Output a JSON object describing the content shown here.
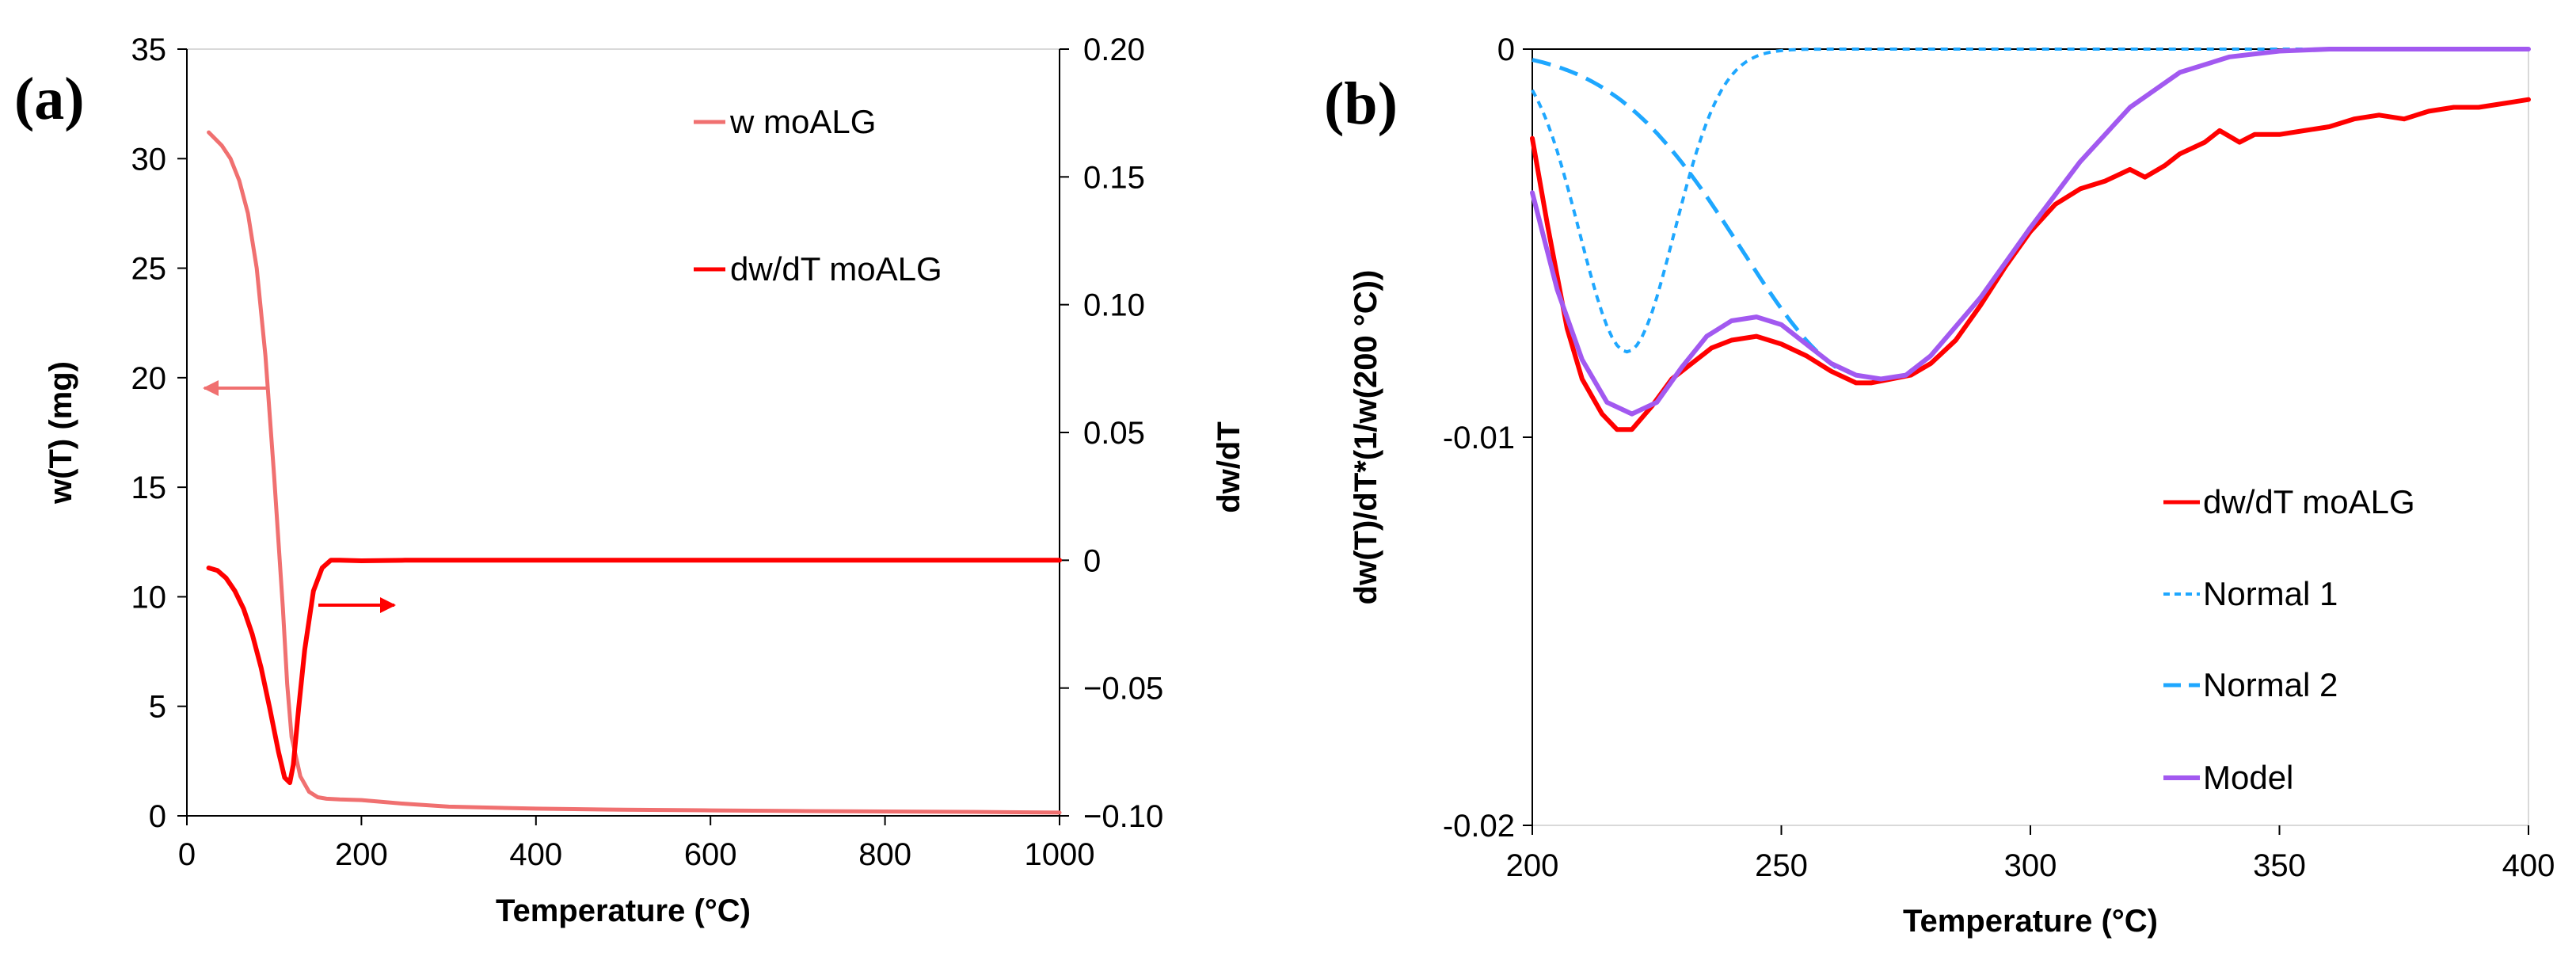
{
  "chart_data": [
    {
      "type": "line",
      "panel_label": "(a)",
      "xlabel": "Temperature (°C)",
      "ylabel": "w(T) (mg)",
      "y2label": "dw/dT",
      "xlim": [
        0,
        1000
      ],
      "ylim": [
        0,
        35
      ],
      "y2lim": [
        -0.1,
        0.2
      ],
      "x_ticks": [
        "0",
        "200",
        "400",
        "600",
        "800",
        "1000"
      ],
      "y_ticks": [
        "0",
        "5",
        "10",
        "15",
        "20",
        "25",
        "30",
        "35"
      ],
      "y2_ticks": [
        "−0.10",
        "−0.05",
        "0",
        "0.05",
        "0.10",
        "0.15",
        "0.20"
      ],
      "grid": false,
      "legend_position": "top-right",
      "annotations": [
        "left arrow points to w axis",
        "right arrow points to dw/dT axis"
      ],
      "series": [
        {
          "name": "w moALG",
          "axis": "left",
          "color": "#f07070",
          "x": [
            25,
            30,
            40,
            50,
            60,
            70,
            80,
            90,
            100,
            110,
            115,
            120,
            130,
            140,
            150,
            160,
            175,
            200,
            220,
            250,
            300,
            400,
            500,
            600,
            700,
            800,
            900,
            1000
          ],
          "y": [
            31.2,
            31.0,
            30.6,
            30.0,
            29.0,
            27.5,
            25.0,
            21.0,
            15.5,
            9.5,
            6.0,
            3.6,
            1.8,
            1.1,
            0.85,
            0.78,
            0.75,
            0.72,
            0.65,
            0.55,
            0.42,
            0.33,
            0.28,
            0.25,
            0.22,
            0.2,
            0.18,
            0.15
          ]
        },
        {
          "name": "dw/dT moALG",
          "axis": "right",
          "color": "#ff0000",
          "x": [
            25,
            35,
            45,
            55,
            65,
            75,
            85,
            95,
            105,
            112,
            118,
            122,
            128,
            135,
            145,
            155,
            165,
            175,
            200,
            250,
            300,
            400,
            600,
            800,
            1000
          ],
          "y": [
            -0.003,
            -0.004,
            -0.007,
            -0.012,
            -0.019,
            -0.029,
            -0.042,
            -0.058,
            -0.075,
            -0.085,
            -0.087,
            -0.08,
            -0.058,
            -0.035,
            -0.012,
            -0.003,
            0.0,
            0.0,
            -0.0002,
            0.0,
            0.0,
            0.0,
            0.0,
            0.0,
            0.0
          ]
        }
      ]
    },
    {
      "type": "line",
      "panel_label": "(b)",
      "xlabel": "Temperature (°C)",
      "ylabel": "dw(T)/dT*(1/w(200 °C))",
      "xlim": [
        200,
        400
      ],
      "ylim": [
        -0.02,
        0
      ],
      "x_ticks": [
        "200",
        "250",
        "300",
        "350",
        "400"
      ],
      "y_ticks": [
        "-0.02",
        "-0.01",
        "0"
      ],
      "grid": false,
      "legend_position": "bottom-right",
      "series": [
        {
          "name": "dw/dT moALG",
          "color": "#ff0000",
          "style": "solid",
          "x": [
            200,
            203,
            207,
            210,
            214,
            217,
            220,
            224,
            228,
            232,
            236,
            240,
            245,
            250,
            255,
            260,
            265,
            268,
            272,
            276,
            280,
            285,
            290,
            295,
            300,
            305,
            310,
            315,
            320,
            323,
            327,
            330,
            335,
            338,
            342,
            345,
            350,
            355,
            360,
            365,
            370,
            375,
            380,
            385,
            390,
            395,
            400
          ],
          "y": [
            -0.0023,
            -0.0045,
            -0.0072,
            -0.0085,
            -0.0094,
            -0.0098,
            -0.0098,
            -0.0092,
            -0.0085,
            -0.0081,
            -0.0077,
            -0.0075,
            -0.0074,
            -0.0076,
            -0.0079,
            -0.0083,
            -0.0086,
            -0.0086,
            -0.0085,
            -0.0084,
            -0.0081,
            -0.0075,
            -0.0066,
            -0.0056,
            -0.0047,
            -0.004,
            -0.0036,
            -0.0034,
            -0.0031,
            -0.0033,
            -0.003,
            -0.0027,
            -0.0024,
            -0.0021,
            -0.0024,
            -0.0022,
            -0.0022,
            -0.0021,
            -0.002,
            -0.0018,
            -0.0017,
            -0.0018,
            -0.0016,
            -0.0015,
            -0.0015,
            -0.0014,
            -0.0013
          ]
        },
        {
          "name": "Normal 1",
          "color": "#1ea7ff",
          "style": "dotted",
          "mean": 219,
          "sd": 9.5,
          "peak": -0.0078,
          "x_range": [
            200,
            400
          ]
        },
        {
          "name": "Normal 2",
          "color": "#1ea7ff",
          "style": "dashed",
          "mean": 268,
          "sd": 26,
          "peak": -0.0085,
          "x_range": [
            200,
            261
          ]
        },
        {
          "name": "Model",
          "color": "#a259f0",
          "style": "solid",
          "x": [
            200,
            205,
            210,
            215,
            220,
            225,
            230,
            235,
            240,
            245,
            250,
            255,
            260,
            265,
            270,
            275,
            280,
            290,
            300,
            310,
            320,
            330,
            340,
            350,
            360,
            380,
            400
          ],
          "y": [
            -0.0037,
            -0.0062,
            -0.008,
            -0.0091,
            -0.0094,
            -0.0091,
            -0.0082,
            -0.0074,
            -0.007,
            -0.0069,
            -0.0071,
            -0.0076,
            -0.0081,
            -0.0084,
            -0.0085,
            -0.0084,
            -0.0079,
            -0.0064,
            -0.0046,
            -0.0029,
            -0.0015,
            -0.0006,
            -0.0002,
            -5e-05,
            0.0,
            0.0,
            0.0
          ]
        }
      ]
    }
  ]
}
